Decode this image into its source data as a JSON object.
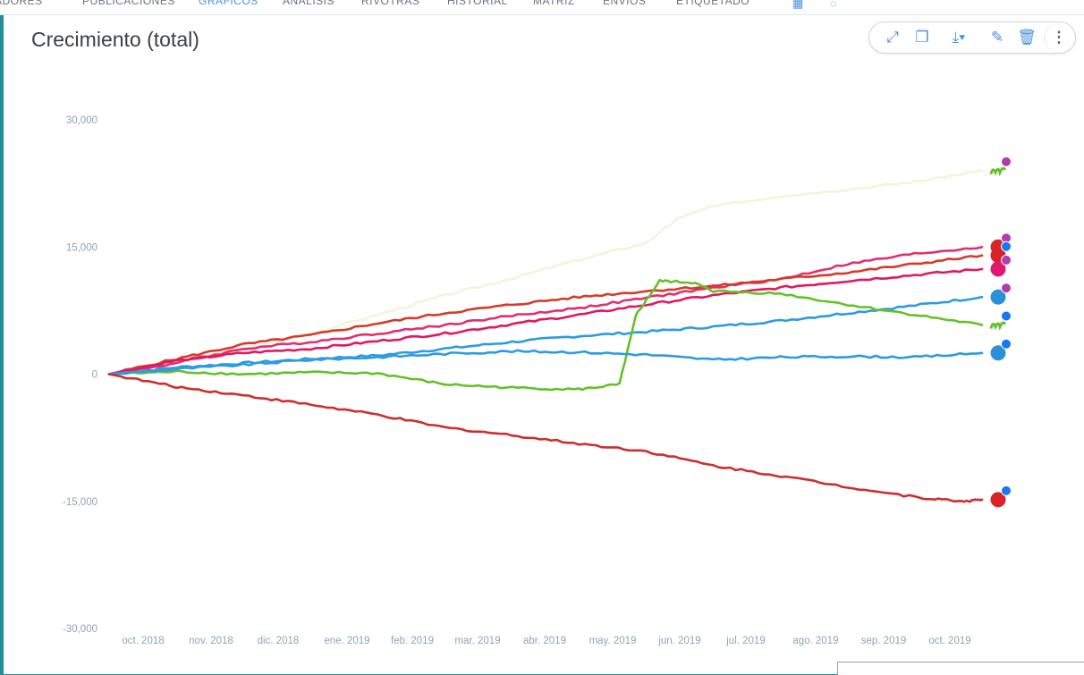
{
  "nav": {
    "items": [
      {
        "label": "ADORES",
        "active": false
      },
      {
        "label": "PUBLICACIONES",
        "active": false
      },
      {
        "label": "GRÁFICOS",
        "active": true
      },
      {
        "label": "ANÁLISIS",
        "active": false
      },
      {
        "label": "RIVOTRAS",
        "active": false
      },
      {
        "label": "HISTORIAL",
        "active": false
      },
      {
        "label": "MATRIZ",
        "active": false
      },
      {
        "label": "ENVÍOS",
        "active": false
      },
      {
        "label": "ETIQUETADO",
        "active": false
      }
    ]
  },
  "chart": {
    "title": "Crecimiento (total)",
    "toolbar": {
      "expand_icon": "expand-icon",
      "copy_icon": "copy-icon",
      "download_icon": "download-icon",
      "edit_icon": "pencil-icon",
      "delete_icon": "trash-icon",
      "more_icon": "more-vertical-icon"
    }
  },
  "chart_data": {
    "type": "line",
    "title": "Crecimiento (total)",
    "xlabel": "",
    "ylabel": "",
    "ylim": [
      -30000,
      30000
    ],
    "yticks": [
      30000,
      15000,
      0,
      -15000,
      -30000
    ],
    "ytick_labels": [
      "30,000",
      "15,000",
      "0",
      "-15,000",
      "-30,000"
    ],
    "xlim": [
      0,
      13.0
    ],
    "xticks": [
      0.5,
      1.5,
      2.5,
      3.5,
      4.5,
      5.5,
      6.5,
      7.5,
      8.5,
      9.5,
      10.5,
      11.5,
      12.5
    ],
    "xtick_labels": [
      "oct. 2018",
      "nov. 2018",
      "dic. 2018",
      "ene. 2019",
      "feb. 2019",
      "mar. 2019",
      "abr. 2019",
      "may. 2019",
      "jun. 2019",
      "jul. 2019",
      "ago. 2019",
      "sep. 2019",
      "oct. 2019"
    ],
    "grid": false,
    "legend": "none",
    "series": [
      {
        "color": "#eef6dc",
        "end_icon": "instagram",
        "brand_icon": "movistar",
        "x": [
          0,
          1,
          2,
          3,
          4,
          5,
          6,
          7,
          8,
          8.5,
          9,
          10,
          11,
          12,
          13
        ],
        "y": [
          0,
          1500,
          3000,
          4800,
          7000,
          9300,
          11300,
          13500,
          15500,
          18500,
          19800,
          21000,
          21800,
          22700,
          24000
        ]
      },
      {
        "color": "#e0306f",
        "end_icon": "instagram",
        "brand_icon": "claro",
        "x": [
          0,
          1,
          2,
          3,
          4,
          5,
          6,
          7,
          8,
          9,
          10,
          11,
          12,
          13
        ],
        "y": [
          0,
          1300,
          3000,
          3800,
          4800,
          5800,
          6900,
          7800,
          9000,
          10200,
          11200,
          13000,
          14200,
          15000
        ]
      },
      {
        "color": "#d63a2a",
        "end_icon": "facebook",
        "brand_icon": "claro",
        "x": [
          0,
          1,
          2,
          3,
          4,
          5,
          6,
          7,
          8,
          9,
          10,
          11,
          12,
          13
        ],
        "y": [
          0,
          1800,
          3500,
          4600,
          6000,
          7200,
          8200,
          9100,
          9800,
          10400,
          11200,
          12000,
          13000,
          14000
        ]
      },
      {
        "color": "#e2185f",
        "end_icon": "instagram",
        "brand_icon": "tigo",
        "x": [
          0,
          1,
          2,
          3,
          4,
          5,
          6,
          7,
          8,
          9,
          10,
          11,
          12,
          13
        ],
        "y": [
          0,
          1600,
          2500,
          3000,
          3900,
          4800,
          5900,
          7000,
          8200,
          9300,
          10200,
          11000,
          11700,
          12400
        ]
      },
      {
        "color": "#2d9be0",
        "end_icon": "instagram",
        "brand_icon": "cnt",
        "x": [
          0,
          1,
          2,
          3,
          4,
          5,
          6,
          7,
          8,
          9,
          10,
          11,
          12,
          13
        ],
        "y": [
          0,
          800,
          1300,
          1800,
          2200,
          3000,
          3800,
          4500,
          5000,
          5600,
          6300,
          7200,
          8100,
          9100
        ]
      },
      {
        "color": "#66c02a",
        "end_icon": "facebook",
        "brand_icon": "movistar",
        "x": [
          0,
          1,
          2,
          3,
          4,
          5,
          6,
          7,
          7.6,
          7.85,
          8.2,
          8.7,
          9,
          10,
          11,
          12,
          13
        ],
        "y": [
          0,
          300,
          0,
          200,
          100,
          -1200,
          -1600,
          -1800,
          -1200,
          7000,
          11000,
          10800,
          9800,
          9500,
          8200,
          7000,
          5800
        ]
      },
      {
        "color": "#2d9be0",
        "end_icon": "facebook",
        "brand_icon": "cnt",
        "x": [
          0,
          1,
          2,
          3,
          4,
          5,
          6,
          7,
          8,
          9,
          10,
          11,
          12,
          13
        ],
        "y": [
          0,
          600,
          1100,
          1700,
          2000,
          2400,
          2700,
          2600,
          2300,
          1700,
          2000,
          2100,
          2000,
          2500
        ]
      },
      {
        "color": "#cc2f2f",
        "end_icon": "facebook",
        "brand_icon": "claro",
        "x": [
          0,
          1,
          2,
          3,
          4,
          5,
          6,
          7,
          8,
          9,
          10,
          11,
          12,
          12.7,
          13
        ],
        "y": [
          0,
          -1500,
          -2500,
          -3600,
          -4800,
          -6300,
          -7200,
          -8200,
          -9100,
          -10800,
          -12000,
          -13300,
          -14500,
          -15000,
          -14800
        ]
      }
    ]
  }
}
